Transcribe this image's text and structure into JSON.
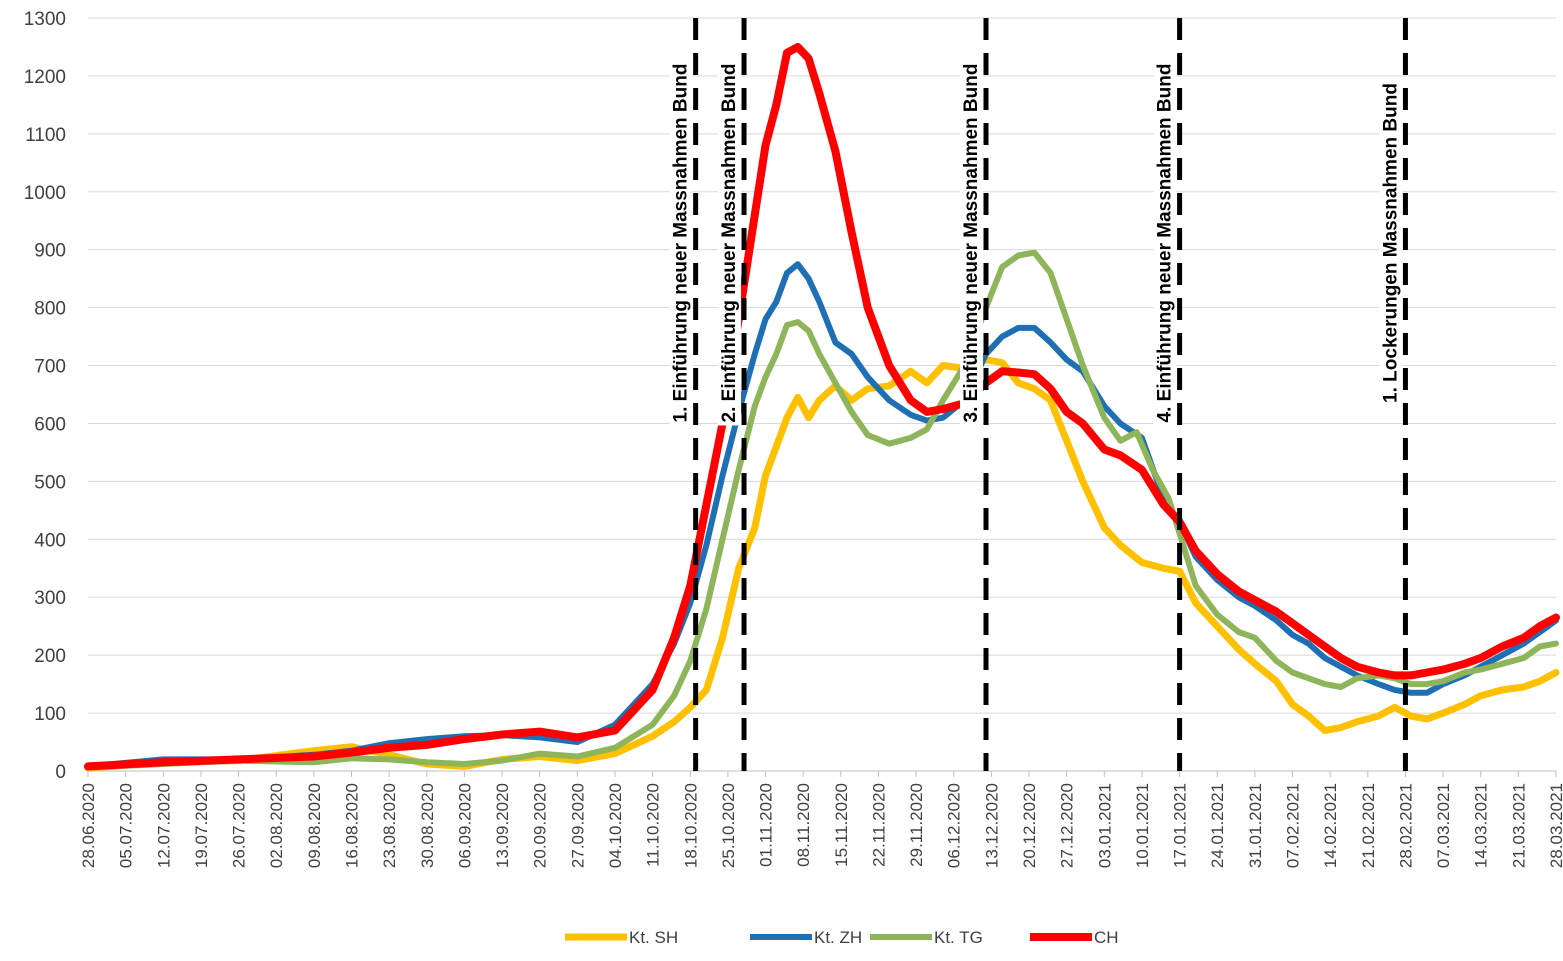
{
  "chart_data": {
    "type": "line",
    "title": "",
    "xlabel": "",
    "ylabel": "",
    "ylim": [
      0,
      1300
    ],
    "yticks": [
      0,
      100,
      200,
      300,
      400,
      500,
      600,
      700,
      800,
      900,
      1000,
      1100,
      1200,
      1300
    ],
    "x_start": "28.06.2020",
    "x_end": "28.03.2021",
    "x_tick_labels": [
      "28.06.2020",
      "05.07.2020",
      "12.07.2020",
      "19.07.2020",
      "26.07.2020",
      "02.08.2020",
      "09.08.2020",
      "16.08.2020",
      "23.08.2020",
      "30.08.2020",
      "06.09.2020",
      "13.09.2020",
      "20.09.2020",
      "27.09.2020",
      "04.10.2020",
      "11.10.2020",
      "18.10.2020",
      "25.10.2020",
      "01.11.2020",
      "08.11.2020",
      "15.11.2020",
      "22.11.2020",
      "29.11.2020",
      "06.12.2020",
      "13.12.2020",
      "20.12.2020",
      "27.12.2020",
      "03.01.2021",
      "10.01.2021",
      "17.01.2021",
      "24.01.2021",
      "31.01.2021",
      "07.02.2021",
      "14.02.2021",
      "21.02.2021",
      "28.02.2021",
      "07.03.2021",
      "14.03.2021",
      "21.03.2021",
      "28.03.2021"
    ],
    "grid": "horizontal",
    "legend_position": "bottom",
    "series": [
      {
        "name": "Kt. SH",
        "color": "#FFC000",
        "stroke": 7,
        "points": [
          [
            "28.06.2020",
            5
          ],
          [
            "12.07.2020",
            15
          ],
          [
            "26.07.2020",
            18
          ],
          [
            "09.08.2020",
            35
          ],
          [
            "16.08.2020",
            42
          ],
          [
            "23.08.2020",
            28
          ],
          [
            "30.08.2020",
            12
          ],
          [
            "06.09.2020",
            8
          ],
          [
            "13.09.2020",
            20
          ],
          [
            "20.09.2020",
            25
          ],
          [
            "27.09.2020",
            18
          ],
          [
            "04.10.2020",
            30
          ],
          [
            "11.10.2020",
            60
          ],
          [
            "15.10.2020",
            85
          ],
          [
            "18.10.2020",
            110
          ],
          [
            "21.10.2020",
            140
          ],
          [
            "24.10.2020",
            230
          ],
          [
            "27.10.2020",
            350
          ],
          [
            "30.10.2020",
            420
          ],
          [
            "01.11.2020",
            510
          ],
          [
            "03.11.2020",
            560
          ],
          [
            "05.11.2020",
            610
          ],
          [
            "07.11.2020",
            645
          ],
          [
            "09.11.2020",
            610
          ],
          [
            "11.11.2020",
            640
          ],
          [
            "14.11.2020",
            665
          ],
          [
            "17.11.2020",
            640
          ],
          [
            "20.11.2020",
            660
          ],
          [
            "24.11.2020",
            665
          ],
          [
            "28.11.2020",
            690
          ],
          [
            "01.12.2020",
            670
          ],
          [
            "04.12.2020",
            700
          ],
          [
            "08.12.2020",
            695
          ],
          [
            "12.12.2020",
            710
          ],
          [
            "15.12.2020",
            705
          ],
          [
            "18.12.2020",
            670
          ],
          [
            "21.12.2020",
            660
          ],
          [
            "24.12.2020",
            640
          ],
          [
            "27.12.2020",
            570
          ],
          [
            "30.12.2020",
            500
          ],
          [
            "03.01.2021",
            420
          ],
          [
            "06.01.2021",
            390
          ],
          [
            "10.01.2021",
            360
          ],
          [
            "14.01.2021",
            350
          ],
          [
            "17.01.2021",
            345
          ],
          [
            "20.01.2021",
            290
          ],
          [
            "24.01.2021",
            250
          ],
          [
            "28.01.2021",
            210
          ],
          [
            "31.01.2021",
            185
          ],
          [
            "04.02.2021",
            155
          ],
          [
            "07.02.2021",
            115
          ],
          [
            "10.02.2021",
            95
          ],
          [
            "13.02.2021",
            70
          ],
          [
            "16.02.2021",
            75
          ],
          [
            "19.02.2021",
            85
          ],
          [
            "23.02.2021",
            95
          ],
          [
            "26.02.2021",
            110
          ],
          [
            "01.03.2021",
            95
          ],
          [
            "04.03.2021",
            90
          ],
          [
            "07.03.2021",
            100
          ],
          [
            "11.03.2021",
            115
          ],
          [
            "14.03.2021",
            130
          ],
          [
            "18.03.2021",
            140
          ],
          [
            "22.03.2021",
            145
          ],
          [
            "25.03.2021",
            155
          ],
          [
            "28.03.2021",
            170
          ]
        ]
      },
      {
        "name": "Kt. ZH",
        "color": "#1F6FB5",
        "stroke": 6,
        "points": [
          [
            "28.06.2020",
            8
          ],
          [
            "12.07.2020",
            20
          ],
          [
            "26.07.2020",
            20
          ],
          [
            "09.08.2020",
            28
          ],
          [
            "16.08.2020",
            35
          ],
          [
            "23.08.2020",
            48
          ],
          [
            "30.08.2020",
            55
          ],
          [
            "06.09.2020",
            60
          ],
          [
            "13.09.2020",
            62
          ],
          [
            "20.09.2020",
            58
          ],
          [
            "27.09.2020",
            50
          ],
          [
            "04.10.2020",
            80
          ],
          [
            "11.10.2020",
            150
          ],
          [
            "15.10.2020",
            220
          ],
          [
            "18.10.2020",
            290
          ],
          [
            "21.10.2020",
            390
          ],
          [
            "24.10.2020",
            510
          ],
          [
            "27.10.2020",
            620
          ],
          [
            "30.10.2020",
            720
          ],
          [
            "01.11.2020",
            780
          ],
          [
            "03.11.2020",
            810
          ],
          [
            "05.11.2020",
            860
          ],
          [
            "07.11.2020",
            875
          ],
          [
            "09.11.2020",
            850
          ],
          [
            "11.11.2020",
            810
          ],
          [
            "14.11.2020",
            740
          ],
          [
            "17.11.2020",
            720
          ],
          [
            "20.11.2020",
            680
          ],
          [
            "24.11.2020",
            640
          ],
          [
            "28.11.2020",
            615
          ],
          [
            "01.12.2020",
            605
          ],
          [
            "04.12.2020",
            610
          ],
          [
            "08.12.2020",
            640
          ],
          [
            "12.12.2020",
            720
          ],
          [
            "15.12.2020",
            750
          ],
          [
            "18.12.2020",
            765
          ],
          [
            "21.12.2020",
            765
          ],
          [
            "24.12.2020",
            740
          ],
          [
            "27.12.2020",
            710
          ],
          [
            "30.12.2020",
            690
          ],
          [
            "03.01.2021",
            630
          ],
          [
            "06.01.2021",
            600
          ],
          [
            "10.01.2021",
            575
          ],
          [
            "14.01.2021",
            470
          ],
          [
            "17.01.2021",
            430
          ],
          [
            "20.01.2021",
            370
          ],
          [
            "24.01.2021",
            330
          ],
          [
            "28.01.2021",
            300
          ],
          [
            "31.01.2021",
            285
          ],
          [
            "04.02.2021",
            260
          ],
          [
            "07.02.2021",
            235
          ],
          [
            "10.02.2021",
            220
          ],
          [
            "13.02.2021",
            195
          ],
          [
            "16.02.2021",
            180
          ],
          [
            "19.02.2021",
            165
          ],
          [
            "23.02.2021",
            150
          ],
          [
            "26.02.2021",
            140
          ],
          [
            "01.03.2021",
            135
          ],
          [
            "04.03.2021",
            135
          ],
          [
            "07.03.2021",
            150
          ],
          [
            "11.03.2021",
            165
          ],
          [
            "14.03.2021",
            180
          ],
          [
            "18.03.2021",
            200
          ],
          [
            "22.03.2021",
            220
          ],
          [
            "25.03.2021",
            240
          ],
          [
            "28.03.2021",
            260
          ]
        ]
      },
      {
        "name": "Kt. TG",
        "color": "#8FB55A",
        "stroke": 6,
        "points": [
          [
            "28.06.2020",
            6
          ],
          [
            "12.07.2020",
            12
          ],
          [
            "26.07.2020",
            18
          ],
          [
            "09.08.2020",
            15
          ],
          [
            "16.08.2020",
            22
          ],
          [
            "23.08.2020",
            20
          ],
          [
            "30.08.2020",
            15
          ],
          [
            "06.09.2020",
            12
          ],
          [
            "13.09.2020",
            18
          ],
          [
            "20.09.2020",
            30
          ],
          [
            "27.09.2020",
            25
          ],
          [
            "04.10.2020",
            40
          ],
          [
            "11.10.2020",
            80
          ],
          [
            "15.10.2020",
            130
          ],
          [
            "18.10.2020",
            190
          ],
          [
            "21.10.2020",
            280
          ],
          [
            "24.10.2020",
            400
          ],
          [
            "27.10.2020",
            520
          ],
          [
            "30.10.2020",
            630
          ],
          [
            "01.11.2020",
            680
          ],
          [
            "03.11.2020",
            720
          ],
          [
            "05.11.2020",
            770
          ],
          [
            "07.11.2020",
            775
          ],
          [
            "09.11.2020",
            760
          ],
          [
            "11.11.2020",
            720
          ],
          [
            "14.11.2020",
            670
          ],
          [
            "17.11.2020",
            620
          ],
          [
            "20.11.2020",
            580
          ],
          [
            "24.11.2020",
            565
          ],
          [
            "28.11.2020",
            575
          ],
          [
            "01.12.2020",
            590
          ],
          [
            "04.12.2020",
            640
          ],
          [
            "08.12.2020",
            700
          ],
          [
            "12.12.2020",
            800
          ],
          [
            "15.12.2020",
            870
          ],
          [
            "18.12.2020",
            890
          ],
          [
            "21.12.2020",
            895
          ],
          [
            "24.12.2020",
            860
          ],
          [
            "27.12.2020",
            780
          ],
          [
            "30.12.2020",
            700
          ],
          [
            "03.01.2021",
            610
          ],
          [
            "06.01.2021",
            570
          ],
          [
            "09.01.2021",
            585
          ],
          [
            "12.01.2021",
            520
          ],
          [
            "15.01.2021",
            470
          ],
          [
            "17.01.2021",
            410
          ],
          [
            "20.01.2021",
            320
          ],
          [
            "24.01.2021",
            270
          ],
          [
            "28.01.2021",
            240
          ],
          [
            "31.01.2021",
            230
          ],
          [
            "04.02.2021",
            190
          ],
          [
            "07.02.2021",
            170
          ],
          [
            "10.02.2021",
            160
          ],
          [
            "13.02.2021",
            150
          ],
          [
            "16.02.2021",
            145
          ],
          [
            "19.02.2021",
            160
          ],
          [
            "23.02.2021",
            165
          ],
          [
            "26.02.2021",
            160
          ],
          [
            "01.03.2021",
            150
          ],
          [
            "04.03.2021",
            150
          ],
          [
            "07.03.2021",
            155
          ],
          [
            "11.03.2021",
            170
          ],
          [
            "14.03.2021",
            175
          ],
          [
            "18.03.2021",
            185
          ],
          [
            "22.03.2021",
            195
          ],
          [
            "25.03.2021",
            215
          ],
          [
            "28.03.2021",
            220
          ]
        ]
      },
      {
        "name": "CH",
        "color": "#FF0000",
        "stroke": 8,
        "points": [
          [
            "28.06.2020",
            8
          ],
          [
            "12.07.2020",
            15
          ],
          [
            "26.07.2020",
            20
          ],
          [
            "09.08.2020",
            25
          ],
          [
            "16.08.2020",
            32
          ],
          [
            "23.08.2020",
            40
          ],
          [
            "30.08.2020",
            45
          ],
          [
            "06.09.2020",
            55
          ],
          [
            "13.09.2020",
            63
          ],
          [
            "20.09.2020",
            68
          ],
          [
            "27.09.2020",
            58
          ],
          [
            "04.10.2020",
            70
          ],
          [
            "11.10.2020",
            140
          ],
          [
            "15.10.2020",
            230
          ],
          [
            "18.10.2020",
            320
          ],
          [
            "21.10.2020",
            460
          ],
          [
            "24.10.2020",
            600
          ],
          [
            "27.10.2020",
            780
          ],
          [
            "30.10.2020",
            960
          ],
          [
            "01.11.2020",
            1080
          ],
          [
            "03.11.2020",
            1150
          ],
          [
            "05.11.2020",
            1240
          ],
          [
            "07.11.2020",
            1250
          ],
          [
            "09.11.2020",
            1230
          ],
          [
            "11.11.2020",
            1170
          ],
          [
            "14.11.2020",
            1070
          ],
          [
            "17.11.2020",
            930
          ],
          [
            "20.11.2020",
            800
          ],
          [
            "24.11.2020",
            700
          ],
          [
            "28.11.2020",
            640
          ],
          [
            "01.12.2020",
            620
          ],
          [
            "04.12.2020",
            625
          ],
          [
            "08.12.2020",
            635
          ],
          [
            "12.12.2020",
            670
          ],
          [
            "15.12.2020",
            690
          ],
          [
            "18.12.2020",
            688
          ],
          [
            "21.12.2020",
            685
          ],
          [
            "24.12.2020",
            660
          ],
          [
            "27.12.2020",
            620
          ],
          [
            "30.12.2020",
            600
          ],
          [
            "03.01.2021",
            555
          ],
          [
            "06.01.2021",
            545
          ],
          [
            "10.01.2021",
            520
          ],
          [
            "14.01.2021",
            460
          ],
          [
            "17.01.2021",
            430
          ],
          [
            "20.01.2021",
            380
          ],
          [
            "24.01.2021",
            340
          ],
          [
            "28.01.2021",
            310
          ],
          [
            "31.01.2021",
            295
          ],
          [
            "04.02.2021",
            275
          ],
          [
            "07.02.2021",
            255
          ],
          [
            "10.02.2021",
            235
          ],
          [
            "13.02.2021",
            215
          ],
          [
            "16.02.2021",
            195
          ],
          [
            "19.02.2021",
            180
          ],
          [
            "23.02.2021",
            170
          ],
          [
            "26.02.2021",
            165
          ],
          [
            "01.03.2021",
            165
          ],
          [
            "04.03.2021",
            170
          ],
          [
            "07.03.2021",
            175
          ],
          [
            "11.03.2021",
            185
          ],
          [
            "14.03.2021",
            195
          ],
          [
            "18.03.2021",
            215
          ],
          [
            "22.03.2021",
            230
          ],
          [
            "25.03.2021",
            250
          ],
          [
            "28.03.2021",
            265
          ]
        ]
      }
    ],
    "annotations": [
      {
        "date": "19.10.2020",
        "label": "1. Einführung neuer Massnahmen Bund"
      },
      {
        "date": "28.10.2020",
        "label": "2. Einführung neuer Massnahmen Bund"
      },
      {
        "date": "12.12.2020",
        "label": "3. Einführung neuer Massnahmen Bund"
      },
      {
        "date": "17.01.2021",
        "label": "4. Einführung neuer Massnahmen Bund"
      },
      {
        "date": "28.02.2021",
        "label": "1. Lockerungen Massnahmen Bund"
      }
    ]
  }
}
